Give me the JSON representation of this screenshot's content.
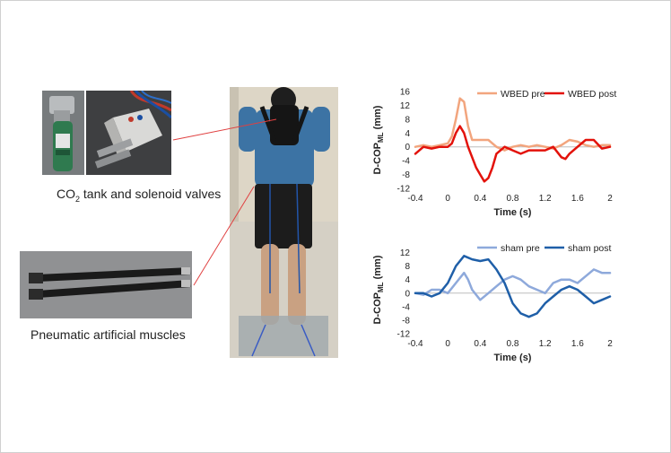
{
  "captions": {
    "tank_pre": "CO",
    "tank_sub": "2",
    "tank_post": " tank and solenoid valves",
    "muscles": "Pneumatic artificial muscles"
  },
  "icons": [
    "co2-tank-photo",
    "solenoid-valves-photo",
    "artificial-muscles-photo",
    "subject-standing-photo"
  ],
  "chart_data": [
    {
      "type": "line",
      "ylabel_main": "D-COP",
      "ylabel_sub": "ML",
      "ylabel_unit": " (mm)",
      "xlabel": "Time (s)",
      "xlim": [
        -0.4,
        2
      ],
      "ylim": [
        -12,
        16
      ],
      "xticks": [
        "-0.4",
        "0",
        "0.4",
        "0.8",
        "1.2",
        "1.6",
        "2"
      ],
      "yticks": [
        "16",
        "12",
        "8",
        "4",
        "0",
        "-4",
        "-8",
        "-12"
      ],
      "legend_position": "top",
      "series": [
        {
          "name": "WBED pre",
          "color": "#f2a57e",
          "x": [
            -0.4,
            -0.3,
            -0.2,
            -0.1,
            0,
            0.05,
            0.1,
            0.15,
            0.2,
            0.25,
            0.3,
            0.4,
            0.5,
            0.6,
            0.7,
            0.8,
            0.9,
            1.0,
            1.1,
            1.2,
            1.3,
            1.4,
            1.5,
            1.6,
            1.7,
            1.8,
            1.9,
            2.0
          ],
          "y": [
            0,
            0.5,
            0,
            0.5,
            1,
            3,
            8,
            14,
            13,
            6,
            2,
            2,
            2,
            0,
            -1,
            0,
            0.5,
            0,
            0.5,
            0,
            -0.5,
            0.5,
            2,
            1.5,
            0.5,
            0,
            0.5,
            0.5
          ]
        },
        {
          "name": "WBED post",
          "color": "#e3120b",
          "x": [
            -0.4,
            -0.3,
            -0.2,
            -0.1,
            0,
            0.05,
            0.1,
            0.15,
            0.2,
            0.25,
            0.3,
            0.35,
            0.4,
            0.45,
            0.5,
            0.55,
            0.6,
            0.7,
            0.8,
            0.9,
            1.0,
            1.1,
            1.2,
            1.3,
            1.4,
            1.45,
            1.5,
            1.6,
            1.7,
            1.8,
            1.9,
            2.0
          ],
          "y": [
            -2,
            0,
            -0.5,
            0,
            0,
            1,
            4,
            6,
            4,
            0,
            -3,
            -6,
            -8,
            -10,
            -9,
            -6,
            -2,
            0,
            -1,
            -2,
            -1,
            -1,
            -1,
            0,
            -3,
            -3.5,
            -2,
            0,
            2,
            2,
            -0.5,
            0
          ]
        }
      ]
    },
    {
      "type": "line",
      "ylabel_main": "D-COP",
      "ylabel_sub": "ML",
      "ylabel_unit": " (mm)",
      "xlabel": "Time (s)",
      "xlim": [
        -0.4,
        2
      ],
      "ylim": [
        -12,
        14
      ],
      "xticks": [
        "-0.4",
        "0",
        "0.4",
        "0.8",
        "1.2",
        "1.6",
        "2"
      ],
      "yticks": [
        "12",
        "8",
        "4",
        "0",
        "-4",
        "-8",
        "-12"
      ],
      "legend_position": "top",
      "series": [
        {
          "name": "sham pre",
          "color": "#8ea9db",
          "x": [
            -0.4,
            -0.3,
            -0.2,
            -0.1,
            0,
            0.1,
            0.2,
            0.25,
            0.3,
            0.4,
            0.5,
            0.6,
            0.7,
            0.8,
            0.9,
            1.0,
            1.1,
            1.2,
            1.3,
            1.4,
            1.5,
            1.6,
            1.7,
            1.8,
            1.9,
            2.0
          ],
          "y": [
            0,
            -0.5,
            1,
            1,
            0,
            3,
            6,
            4,
            1,
            -2,
            0,
            2,
            4,
            5,
            4,
            2,
            1,
            0,
            3,
            4,
            4,
            3,
            5,
            7,
            6,
            6
          ]
        },
        {
          "name": "sham post",
          "color": "#1f5fa8",
          "x": [
            -0.4,
            -0.3,
            -0.2,
            -0.1,
            0,
            0.1,
            0.2,
            0.3,
            0.4,
            0.5,
            0.6,
            0.7,
            0.8,
            0.9,
            1.0,
            1.1,
            1.2,
            1.3,
            1.4,
            1.5,
            1.6,
            1.7,
            1.8,
            1.9,
            2.0
          ],
          "y": [
            0,
            0,
            -1,
            0,
            3,
            8,
            11,
            10,
            9.5,
            10,
            7,
            3,
            -3,
            -6,
            -7,
            -6,
            -3,
            -1,
            1,
            2,
            1,
            -1,
            -3,
            -2,
            -1
          ]
        }
      ]
    }
  ]
}
